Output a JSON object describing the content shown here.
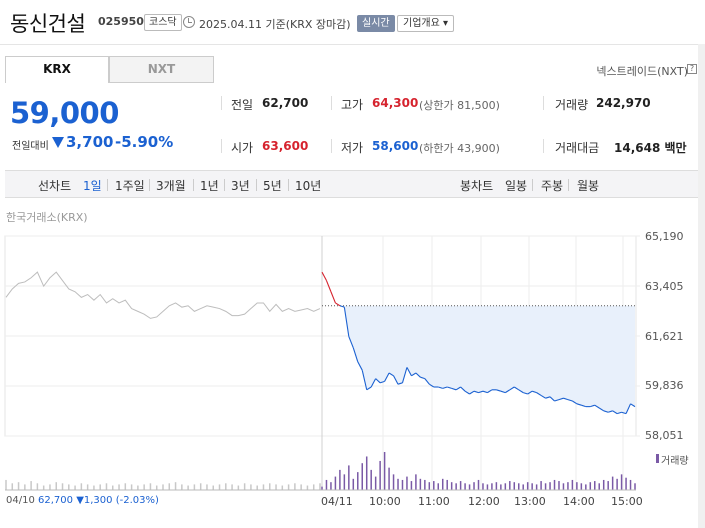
{
  "header": {
    "title": "동신건설",
    "code": "025950",
    "market_badge": "코스닥",
    "date_text": "2025.04.11 기준(KRX 장마감)",
    "live_badge": "실시간",
    "overview_button": "기업개요"
  },
  "tabs": [
    {
      "label": "KRX"
    },
    {
      "label": "NXT"
    }
  ],
  "nxt_link": "넥스트레이드(NXT)",
  "help": "?",
  "quote": {
    "price": "59,000",
    "change_label": "전일대비",
    "change": "3,700",
    "change_pct": "-5.90%"
  },
  "stats": {
    "prev_close_label": "전일",
    "prev_close": "62,700",
    "high_label": "고가",
    "high": "64,300",
    "upper_limit": "(상한가 81,500)",
    "volume_label": "거래량",
    "volume": "242,970",
    "open_label": "시가",
    "open": "63,600",
    "low_label": "저가",
    "low": "58,600",
    "lower_limit": "(하한가 43,900)",
    "amount_label": "거래대금",
    "amount": "14,648 백만"
  },
  "period_bar": {
    "chart_label": "선차트",
    "periods": [
      "1일",
      "1주일",
      "3개월",
      "1년",
      "3년",
      "5년",
      "10년"
    ],
    "selected": "1일",
    "candle_label": "봉차트",
    "candles": [
      "일봉",
      "주봉",
      "월봉"
    ]
  },
  "chart": {
    "market_label": "한국거래소(KRX)",
    "y_ticks": [
      "65,190",
      "63,405",
      "61,621",
      "59,836",
      "58,051"
    ],
    "x_ticks": [
      "04/11",
      "10:00",
      "11:00",
      "12:00",
      "13:00",
      "14:00",
      "15:00"
    ],
    "volume_label": "거래량",
    "prev_day": {
      "date": "04/10",
      "close": "62,700",
      "change": "▼1,300",
      "pct": "(-2.03%)"
    },
    "colors": {
      "up": "#d6232e",
      "down": "#1b61d1",
      "prev": "#bdbdbd",
      "fill": "#e8f0fb",
      "volume": "#7a5aa6"
    }
  },
  "chart_data": {
    "type": "line",
    "ylim": [
      58051,
      65190
    ],
    "reference_price": 62700,
    "prev_day_series": [
      63000,
      63300,
      63500,
      63550,
      63700,
      63900,
      63400,
      63700,
      63900,
      63600,
      63300,
      63200,
      63000,
      63100,
      62900,
      63100,
      62800,
      62950,
      62800,
      62900,
      62600,
      62500,
      62400,
      62250,
      62300,
      62500,
      62700,
      62800,
      62650,
      62700,
      62500,
      62600,
      62700,
      62650,
      62600,
      62500,
      62350,
      62350,
      62400,
      62600,
      62800,
      62800,
      62500,
      62750,
      62500,
      62600,
      62500,
      62550,
      62600,
      62500,
      62600
    ],
    "today_series": [
      63900,
      63600,
      63200,
      62800,
      62700,
      62650,
      61600,
      61200,
      60700,
      60400,
      59700,
      59800,
      60100,
      59950,
      60000,
      60300,
      60200,
      59900,
      59950,
      60500,
      60200,
      60300,
      60150,
      60100,
      59900,
      59800,
      59800,
      59750,
      59800,
      59750,
      59700,
      59800,
      59650,
      59550,
      59650,
      59600,
      59650,
      59600,
      59700,
      59700,
      59650,
      59600,
      59700,
      59800,
      59700,
      59600,
      59550,
      59650,
      59600,
      59500,
      59400,
      59450,
      59300,
      59350,
      59400,
      59350,
      59300,
      59200,
      59150,
      59100,
      59100,
      59150,
      59050,
      58950,
      58900,
      58950,
      58850,
      58900,
      58850,
      59200,
      59100
    ],
    "today_volume": [
      3,
      9,
      7,
      12,
      18,
      14,
      22,
      10,
      16,
      24,
      30,
      18,
      12,
      26,
      34,
      20,
      14,
      10,
      9,
      12,
      8,
      14,
      10,
      9,
      7,
      8,
      6,
      10,
      9,
      7,
      6,
      8,
      6,
      5,
      7,
      9,
      6,
      5,
      6,
      7,
      5,
      6,
      8,
      7,
      6,
      5,
      7,
      6,
      5,
      8,
      6,
      7,
      9,
      8,
      6,
      7,
      9,
      7,
      6,
      5,
      7,
      8,
      6,
      9,
      8,
      12,
      10,
      14,
      11,
      9,
      6
    ],
    "prev_day_volume": [
      9,
      6,
      7,
      5,
      8,
      6,
      4,
      5,
      7,
      6,
      5,
      4,
      6,
      5,
      4,
      5,
      6,
      4,
      5,
      6,
      5,
      4,
      5,
      6,
      4,
      5,
      6,
      7,
      5,
      4,
      5,
      6,
      5,
      4,
      5,
      6,
      5,
      4,
      6,
      5,
      4,
      5,
      6,
      5,
      4,
      5,
      6,
      5,
      4,
      5,
      6
    ]
  }
}
